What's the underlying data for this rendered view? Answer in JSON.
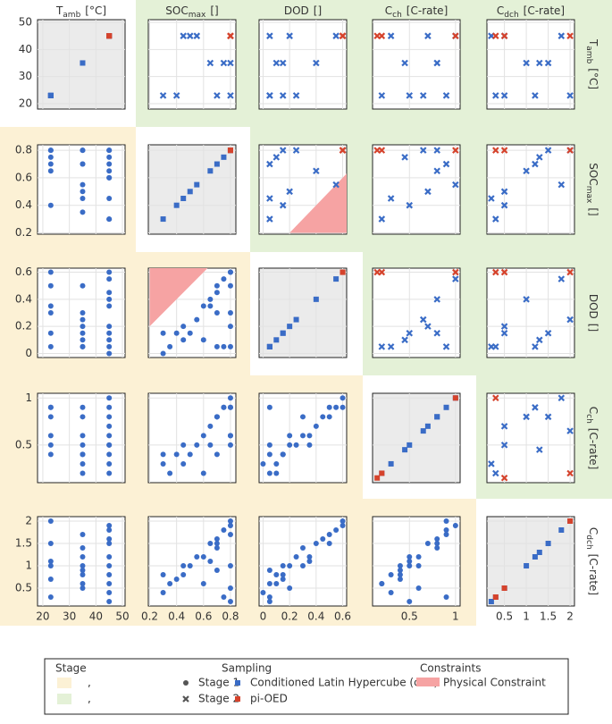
{
  "chart_data": {
    "type": "scatter_matrix",
    "variables": [
      {
        "symbol": "T",
        "sub": "amb",
        "unit": "[°C]",
        "lim": [
          18,
          51
        ],
        "ticks": [
          20,
          30,
          40,
          50
        ]
      },
      {
        "symbol": "SOC",
        "sub": "max",
        "unit": "[]",
        "lim": [
          0.19,
          0.84
        ],
        "ticks": [
          0.2,
          0.4,
          0.6,
          0.8
        ]
      },
      {
        "symbol": "DOD",
        "unit": "[]",
        "lim": [
          -0.03,
          0.63
        ],
        "ticks": [
          0,
          0.2,
          0.4,
          0.6
        ]
      },
      {
        "symbol": "C",
        "sub": "ch",
        "unit": "[C-rate]",
        "lim": [
          0.1,
          1.05
        ],
        "ticks": [
          0.5,
          1
        ]
      },
      {
        "symbol": "C",
        "sub": "dch",
        "unit": "[C-rate]",
        "lim": [
          0.1,
          2.1
        ],
        "ticks": [
          0.5,
          1,
          1.5,
          2
        ]
      }
    ],
    "stages": [
      {
        "name": "Stage 1",
        "legend_label": ",",
        "region_color": "#fcf1d5",
        "marker": "circle"
      },
      {
        "name": "Stage 2",
        "legend_label": ",",
        "region_color": "#e4f1d7",
        "marker": "cross"
      }
    ],
    "series": [
      {
        "name": "Conditioned Latin Hypercube (cLH)",
        "color": "#3a6cc6",
        "stage1": [
          [
            23,
            0.8,
            0.6,
            0.9,
            2.0
          ],
          [
            23,
            0.7,
            0.5,
            0.8,
            1.5
          ],
          [
            23,
            0.65,
            0.35,
            0.5,
            1.1
          ],
          [
            23,
            0.8,
            0.3,
            0.6,
            1.0
          ],
          [
            23,
            0.4,
            0.15,
            0.4,
            0.7
          ],
          [
            23,
            0.75,
            0.05,
            0.9,
            0.3
          ],
          [
            35,
            0.8,
            0.5,
            0.9,
            1.7
          ],
          [
            35,
            0.7,
            0.3,
            0.8,
            1.4
          ],
          [
            35,
            0.55,
            0.25,
            0.5,
            1.2
          ],
          [
            35,
            0.5,
            0.15,
            0.4,
            1.0
          ],
          [
            35,
            0.45,
            0.1,
            0.3,
            0.8
          ],
          [
            35,
            0.35,
            0.05,
            0.2,
            0.6
          ],
          [
            35,
            0.8,
            0.2,
            0.6,
            0.5
          ],
          [
            35,
            0.7,
            0.05,
            0.4,
            0.9
          ],
          [
            45,
            0.8,
            0.6,
            1.0,
            1.9
          ],
          [
            45,
            0.75,
            0.55,
            0.9,
            1.8
          ],
          [
            45,
            0.7,
            0.45,
            0.8,
            1.6
          ],
          [
            45,
            0.65,
            0.4,
            0.7,
            1.5
          ],
          [
            45,
            0.6,
            0.35,
            0.6,
            1.2
          ],
          [
            45,
            0.45,
            0.2,
            0.5,
            1.0
          ],
          [
            45,
            0.3,
            0.15,
            0.4,
            0.8
          ],
          [
            45,
            0.6,
            0.1,
            0.2,
            0.6
          ],
          [
            45,
            0.8,
            0.05,
            0.5,
            0.2
          ],
          [
            45,
            0.3,
            0.0,
            0.3,
            0.4
          ]
        ],
        "stage2": [
          [
            23,
            0.3,
            0.05,
            0.2,
            0.3
          ],
          [
            23,
            0.4,
            0.15,
            0.5,
            0.5
          ],
          [
            45,
            0.45,
            0.05,
            0.3,
            0.2
          ],
          [
            45,
            0.5,
            0.2,
            0.7,
            0.5
          ],
          [
            45,
            0.55,
            0.55,
            1.0,
            1.8
          ],
          [
            35,
            0.65,
            0.4,
            0.8,
            1.0
          ],
          [
            35,
            0.75,
            0.1,
            0.45,
            1.3
          ],
          [
            35,
            0.8,
            0.15,
            0.8,
            1.5
          ],
          [
            23,
            0.7,
            0.05,
            0.9,
            1.2
          ],
          [
            23,
            0.8,
            0.25,
            0.65,
            2.0
          ]
        ]
      },
      {
        "name": "pi-OED",
        "color": "#d5432c",
        "stage2": [
          [
            45,
            0.8,
            0.6,
            1.0,
            0.3
          ],
          [
            45,
            0.8,
            0.6,
            0.15,
            0.5
          ],
          [
            45,
            0.8,
            0.6,
            0.2,
            2.0
          ]
        ]
      }
    ],
    "constraint": {
      "name": "Physical Constraint",
      "color": "#f6a3a3",
      "dims": [
        1,
        2
      ],
      "vertices": [
        [
          0.2,
          0.2
        ],
        [
          0.2,
          0.7
        ],
        [
          0.7,
          0.7
        ]
      ]
    },
    "legend_titles": [
      "Stage",
      "Sampling",
      "Constraints"
    ],
    "grid": true
  }
}
